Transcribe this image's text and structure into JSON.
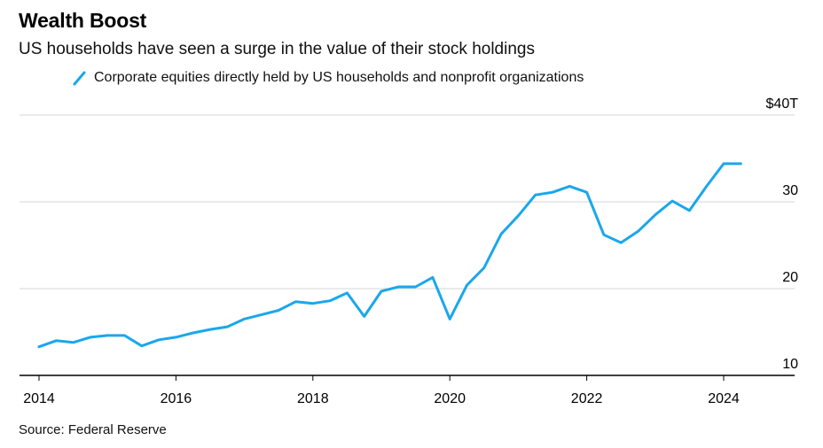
{
  "title": "Wealth Boost",
  "subtitle": "US households have seen a surge in the value of their stock holdings",
  "source": "Source: Federal Reserve",
  "chart_data": {
    "type": "line",
    "title": "Wealth Boost",
    "subtitle": "US households have seen a surge in the value of their stock holdings",
    "xlabel": "",
    "ylabel": "",
    "xlim": [
      2014,
      2025
    ],
    "ylim": [
      10,
      40
    ],
    "x_ticks": [
      2014,
      2016,
      2018,
      2020,
      2022,
      2024
    ],
    "x_tick_labels": [
      "2014",
      "2016",
      "2018",
      "2020",
      "2022",
      "2024"
    ],
    "y_ticks": [
      10,
      20,
      30,
      40
    ],
    "y_tick_labels": [
      "10",
      "20",
      "30",
      "$40T"
    ],
    "grid": "horizontal",
    "legend": "top-left",
    "color": "#1aa7ec",
    "series": [
      {
        "name": "Corporate equities directly held by US households and nonprofit organizations",
        "x": [
          2014.0,
          2014.25,
          2014.5,
          2014.75,
          2015.0,
          2015.25,
          2015.5,
          2015.75,
          2016.0,
          2016.25,
          2016.5,
          2016.75,
          2017.0,
          2017.25,
          2017.5,
          2017.75,
          2018.0,
          2018.25,
          2018.5,
          2018.75,
          2019.0,
          2019.25,
          2019.5,
          2019.75,
          2020.0,
          2020.25,
          2020.5,
          2020.75,
          2021.0,
          2021.25,
          2021.5,
          2021.75,
          2022.0,
          2022.25,
          2022.5,
          2022.75,
          2023.0,
          2023.25,
          2023.5,
          2023.75,
          2024.0,
          2024.25
        ],
        "values": [
          13.3,
          14.0,
          13.8,
          14.4,
          14.6,
          14.6,
          13.4,
          14.1,
          14.4,
          14.9,
          15.3,
          15.6,
          16.5,
          17.0,
          17.5,
          18.5,
          18.3,
          18.6,
          19.5,
          16.8,
          19.7,
          20.2,
          20.2,
          21.3,
          16.5,
          20.4,
          22.4,
          26.3,
          28.4,
          30.8,
          31.1,
          31.8,
          31.1,
          26.2,
          25.3,
          26.6,
          28.5,
          30.1,
          29.0,
          31.8,
          34.4,
          34.4
        ]
      }
    ]
  }
}
